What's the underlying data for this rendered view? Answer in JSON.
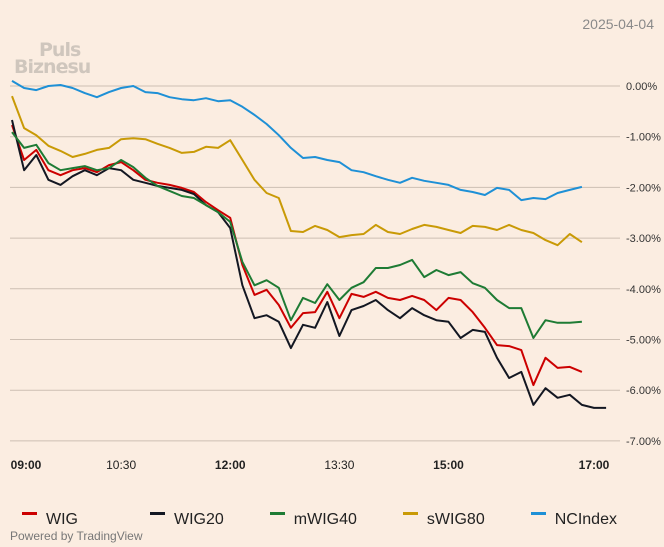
{
  "header": {
    "date": "2025-04-04"
  },
  "logo": {
    "line1": "Puls",
    "line2": "Biznesu"
  },
  "footer": {
    "powered_by": "Powered by TradingView"
  },
  "chart_data": {
    "type": "line",
    "title": "",
    "xlabel": "",
    "ylabel": "",
    "x_start": "09:00",
    "x_step_minutes": 10,
    "x_ticks": [
      "09:00",
      "10:30",
      "12:00",
      "13:30",
      "15:00",
      "17:00"
    ],
    "x_tick_minutes": [
      0,
      90,
      180,
      270,
      360,
      480
    ],
    "y_ticks": [
      "0.00%",
      "-1.00%",
      "-2.00%",
      "-3.00%",
      "-4.00%",
      "-5.00%",
      "-6.00%",
      "-7.00%"
    ],
    "y_tick_values": [
      0,
      -1,
      -2,
      -3,
      -4,
      -5,
      -6,
      -7
    ],
    "ylim": [
      -7,
      0
    ],
    "grid": true,
    "legend": "bottom",
    "series": [
      {
        "name": "WIG",
        "color": "#cc0000",
        "values": [
          -0.77,
          -1.46,
          -1.26,
          -1.66,
          -1.76,
          -1.66,
          -1.62,
          -1.7,
          -1.56,
          -1.5,
          -1.66,
          -1.85,
          -1.91,
          -1.95,
          -2.01,
          -2.09,
          -2.29,
          -2.45,
          -2.6,
          -3.53,
          -4.12,
          -4.02,
          -4.32,
          -4.77,
          -4.48,
          -4.46,
          -4.06,
          -4.58,
          -4.1,
          -4.16,
          -4.06,
          -4.18,
          -4.22,
          -4.14,
          -4.22,
          -4.42,
          -4.18,
          -4.22,
          -4.46,
          -4.77,
          -5.11,
          -5.13,
          -5.21,
          -5.9,
          -5.36,
          -5.56,
          -5.54,
          -5.64
        ]
      },
      {
        "name": "WIG20",
        "color": "#131722",
        "values": [
          -0.67,
          -1.66,
          -1.36,
          -1.85,
          -1.95,
          -1.78,
          -1.66,
          -1.76,
          -1.62,
          -1.66,
          -1.85,
          -1.91,
          -1.97,
          -2.01,
          -2.05,
          -2.13,
          -2.35,
          -2.49,
          -2.8,
          -3.93,
          -4.58,
          -4.52,
          -4.65,
          -5.17,
          -4.71,
          -4.77,
          -4.26,
          -4.93,
          -4.42,
          -4.34,
          -4.22,
          -4.42,
          -4.58,
          -4.38,
          -4.52,
          -4.62,
          -4.65,
          -4.97,
          -4.81,
          -4.85,
          -5.36,
          -5.76,
          -5.64,
          -6.29,
          -5.96,
          -6.15,
          -6.09,
          -6.29,
          -6.35,
          -6.35
        ]
      },
      {
        "name": "mWIG40",
        "color": "#1e7b34",
        "values": [
          -0.91,
          -1.22,
          -1.16,
          -1.52,
          -1.66,
          -1.62,
          -1.58,
          -1.66,
          -1.62,
          -1.46,
          -1.6,
          -1.81,
          -1.97,
          -2.07,
          -2.17,
          -2.21,
          -2.35,
          -2.49,
          -2.68,
          -3.47,
          -3.93,
          -3.83,
          -3.98,
          -4.62,
          -4.18,
          -4.28,
          -3.91,
          -4.22,
          -3.98,
          -3.87,
          -3.59,
          -3.59,
          -3.53,
          -3.43,
          -3.77,
          -3.63,
          -3.73,
          -3.67,
          -3.89,
          -3.98,
          -4.22,
          -4.38,
          -4.38,
          -4.97,
          -4.62,
          -4.67,
          -4.67,
          -4.65
        ]
      },
      {
        "name": "sWIG80",
        "color": "#c99a06",
        "values": [
          -0.2,
          -0.83,
          -0.97,
          -1.18,
          -1.28,
          -1.4,
          -1.34,
          -1.26,
          -1.22,
          -1.05,
          -1.03,
          -1.05,
          -1.14,
          -1.22,
          -1.32,
          -1.3,
          -1.2,
          -1.22,
          -1.07,
          -1.46,
          -1.85,
          -2.11,
          -2.21,
          -2.86,
          -2.88,
          -2.76,
          -2.84,
          -2.98,
          -2.94,
          -2.92,
          -2.74,
          -2.88,
          -2.92,
          -2.82,
          -2.74,
          -2.78,
          -2.84,
          -2.9,
          -2.76,
          -2.78,
          -2.84,
          -2.74,
          -2.84,
          -2.9,
          -3.04,
          -3.14,
          -2.92,
          -3.08
        ]
      },
      {
        "name": "NCIndex",
        "color": "#1e90d6",
        "values": [
          0.1,
          -0.04,
          -0.08,
          0.0,
          0.02,
          -0.04,
          -0.14,
          -0.22,
          -0.12,
          -0.04,
          0.0,
          -0.12,
          -0.14,
          -0.22,
          -0.26,
          -0.28,
          -0.24,
          -0.3,
          -0.28,
          -0.41,
          -0.57,
          -0.75,
          -0.97,
          -1.22,
          -1.42,
          -1.4,
          -1.46,
          -1.5,
          -1.66,
          -1.7,
          -1.78,
          -1.85,
          -1.91,
          -1.81,
          -1.87,
          -1.91,
          -1.95,
          -2.05,
          -2.09,
          -2.15,
          -2.01,
          -2.05,
          -2.25,
          -2.21,
          -2.23,
          -2.11,
          -2.05,
          -1.99
        ]
      }
    ]
  }
}
